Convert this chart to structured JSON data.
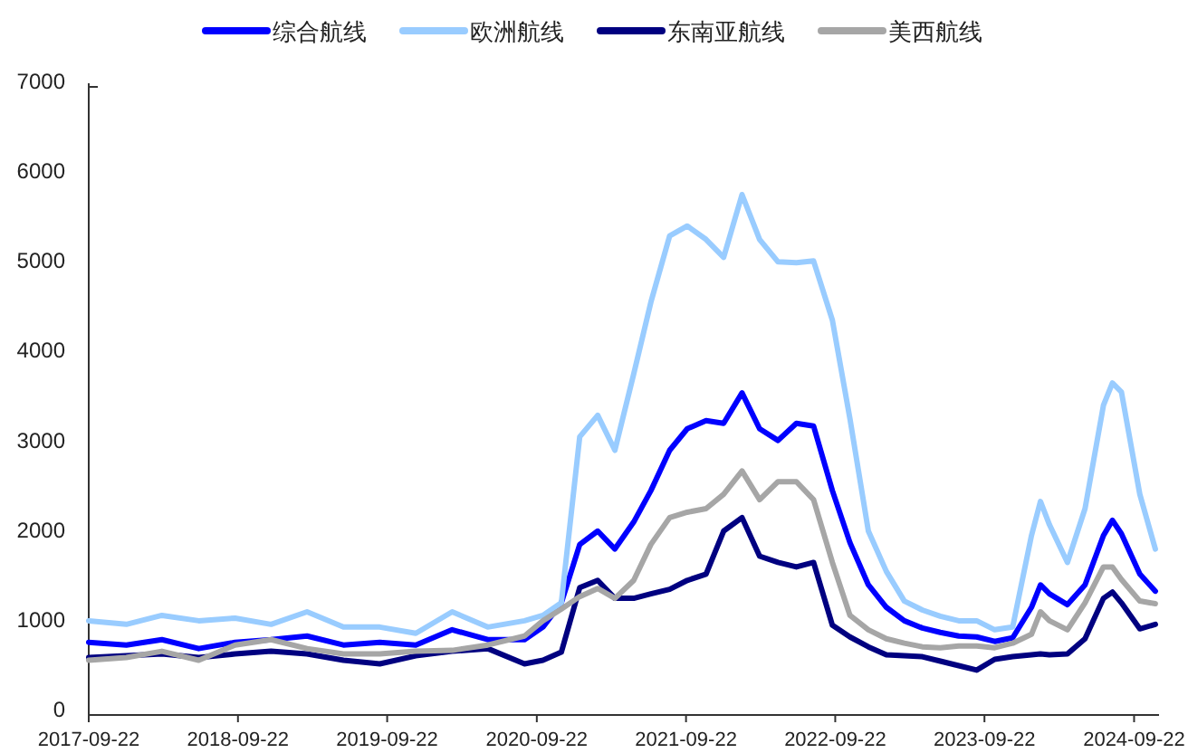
{
  "chart_data": {
    "type": "line",
    "legend": "top",
    "grid": false,
    "marker": "none",
    "line_style": "solid",
    "x": [
      "2017-09-22",
      "2017-12-23",
      "2018-03-20",
      "2018-06-18",
      "2018-09-15",
      "2018-12-12",
      "2019-03-10",
      "2019-06-07",
      "2019-09-04",
      "2019-12-01",
      "2020-02-28",
      "2020-05-25",
      "2020-08-23",
      "2020-10-07",
      "2020-11-21",
      "2021-01-05",
      "2021-02-18",
      "2021-04-01",
      "2021-05-17",
      "2021-06-28",
      "2021-08-13",
      "2021-09-25",
      "2021-11-10",
      "2021-12-23",
      "2022-02-06",
      "2022-03-21",
      "2022-05-05",
      "2022-06-19",
      "2022-07-31",
      "2022-09-15",
      "2022-10-28",
      "2022-12-12",
      "2023-01-25",
      "2023-03-10",
      "2023-04-23",
      "2023-06-06",
      "2023-07-21",
      "2023-09-03",
      "2023-10-17",
      "2023-11-30",
      "2024-01-15",
      "2024-02-06",
      "2024-02-28",
      "2024-04-12",
      "2024-05-25",
      "2024-07-09",
      "2024-07-31",
      "2024-08-22",
      "2024-10-06",
      "2024-11-13"
    ],
    "series": [
      {
        "name": "综合航线",
        "color": "#0000ff",
        "values": [
          810,
          780,
          840,
          740,
          810,
          840,
          880,
          780,
          810,
          780,
          950,
          840,
          840,
          980,
          1250,
          1900,
          2050,
          1850,
          2150,
          2500,
          2950,
          3190,
          3280,
          3250,
          3590,
          3190,
          3060,
          3250,
          3220,
          2500,
          1920,
          1450,
          1200,
          1050,
          970,
          920,
          880,
          870,
          820,
          860,
          1200,
          1450,
          1350,
          1230,
          1450,
          2000,
          2170,
          2020,
          1570,
          1380
        ]
      },
      {
        "name": "欧洲航线",
        "color": "#99ccff",
        "values": [
          1050,
          1010,
          1110,
          1050,
          1080,
          1010,
          1150,
          980,
          980,
          910,
          1150,
          980,
          1050,
          1110,
          1250,
          3100,
          3340,
          2950,
          3800,
          4600,
          5340,
          5450,
          5300,
          5100,
          5800,
          5300,
          5050,
          5040,
          5060,
          4400,
          3300,
          2050,
          1600,
          1270,
          1170,
          1100,
          1050,
          1050,
          950,
          980,
          2000,
          2380,
          2120,
          1700,
          2300,
          3450,
          3700,
          3600,
          2460,
          1850
        ]
      },
      {
        "name": "东南亚航线",
        "color": "#000080",
        "values": [
          640,
          660,
          680,
          640,
          680,
          710,
          680,
          610,
          570,
          660,
          710,
          740,
          570,
          610,
          700,
          1420,
          1500,
          1300,
          1300,
          1350,
          1400,
          1500,
          1570,
          2050,
          2200,
          1770,
          1700,
          1650,
          1700,
          1000,
          870,
          760,
          670,
          660,
          650,
          600,
          550,
          500,
          620,
          650,
          670,
          680,
          670,
          680,
          850,
          1300,
          1370,
          1250,
          960,
          1010
        ]
      },
      {
        "name": "美西航线",
        "color": "#a6a6a6",
        "values": [
          610,
          640,
          710,
          610,
          780,
          840,
          740,
          680,
          680,
          710,
          720,
          780,
          880,
          1050,
          1180,
          1320,
          1410,
          1300,
          1500,
          1900,
          2200,
          2260,
          2300,
          2460,
          2720,
          2400,
          2600,
          2600,
          2400,
          1700,
          1110,
          950,
          850,
          800,
          760,
          750,
          770,
          770,
          750,
          800,
          900,
          1150,
          1050,
          950,
          1250,
          1650,
          1650,
          1510,
          1270,
          1240
        ]
      }
    ],
    "xlim": [
      "2017-09-22",
      "2024-11-22"
    ],
    "xticks": [
      "2017-09-22",
      "2018-09-22",
      "2019-09-22",
      "2020-09-22",
      "2021-09-22",
      "2022-09-22",
      "2023-09-22",
      "2024-09-22"
    ],
    "ylim": [
      0,
      7000
    ],
    "yticks": [
      0,
      1000,
      2000,
      3000,
      4000,
      5000,
      6000,
      7000
    ]
  }
}
